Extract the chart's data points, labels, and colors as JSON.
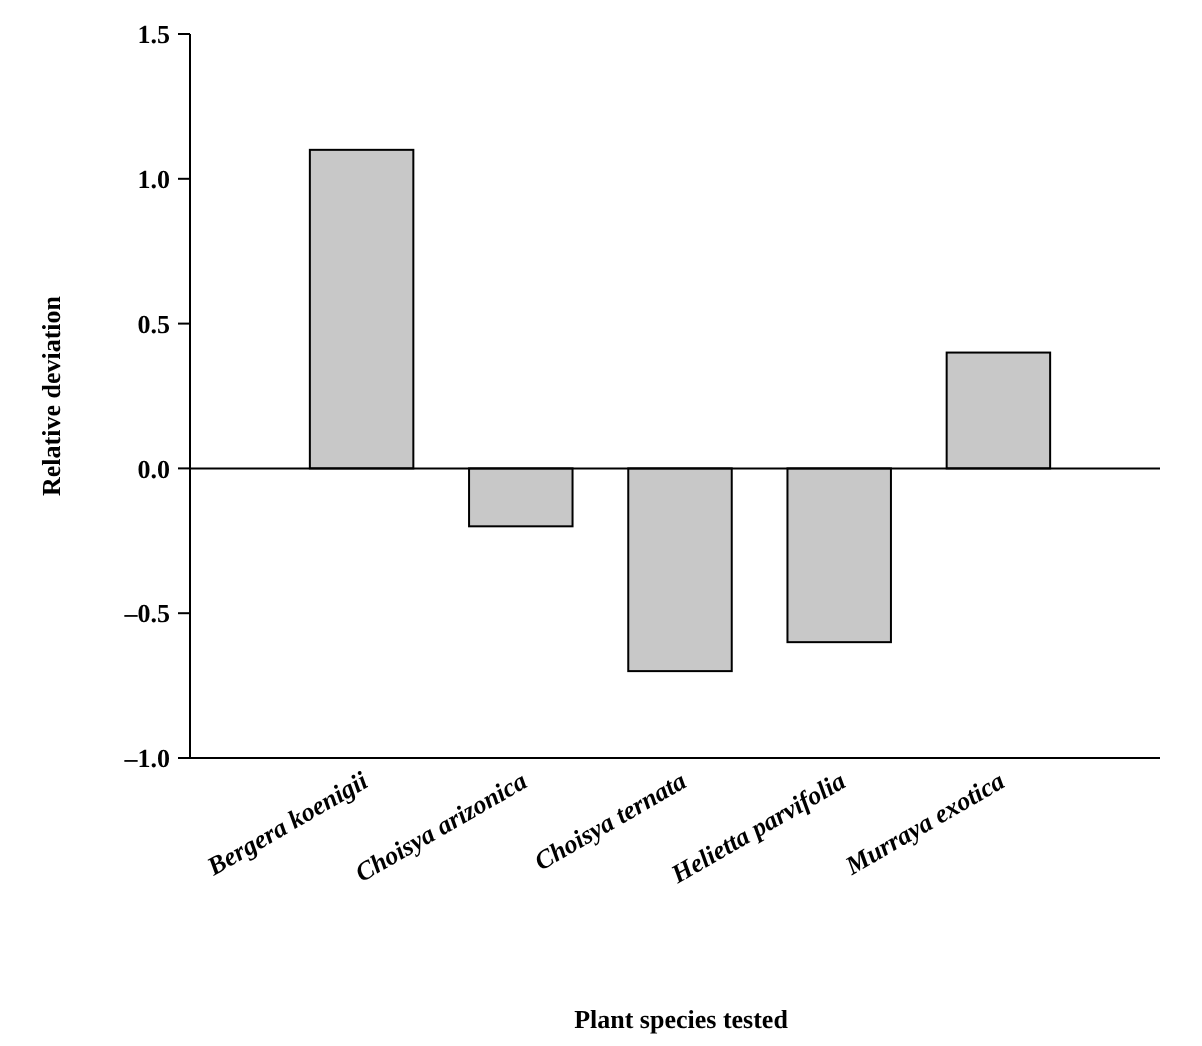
{
  "chart_data": {
    "type": "bar",
    "xlabel": "Plant species tested",
    "ylabel": "Relative deviation",
    "categories": [
      "Bergera koenigii",
      "Choisya arizonica",
      "Choisya ternata",
      "Helietta parvifolia",
      "Murraya exotica"
    ],
    "values": [
      1.1,
      -0.2,
      -0.7,
      -0.6,
      0.4
    ],
    "color": "#c8c8c8",
    "ylim": [
      -1,
      1.5
    ],
    "yticks": [
      {
        "value": -1,
        "label": "–1.0"
      },
      {
        "value": -0.5,
        "label": "–0.5"
      },
      {
        "value": 0,
        "label": "0.0"
      },
      {
        "value": 0.5,
        "label": "0.5"
      },
      {
        "value": 1,
        "label": "1.0"
      },
      {
        "value": 1.5,
        "label": "1.5"
      }
    ]
  }
}
